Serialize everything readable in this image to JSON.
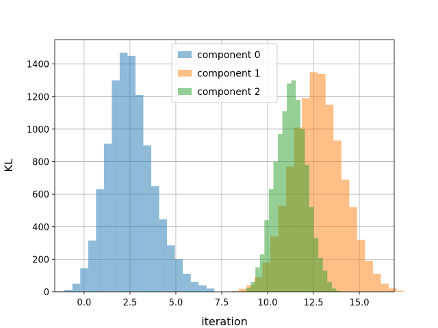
{
  "chart_data": {
    "type": "histogram",
    "xlabel": "iteration",
    "ylabel": "KL",
    "xlim": [
      -1.6,
      16.9
    ],
    "ylim": [
      0,
      1550
    ],
    "xticks": [
      0.0,
      2.5,
      5.0,
      7.5,
      10.0,
      12.5,
      15.0
    ],
    "xtick_labels": [
      "0.0",
      "2.5",
      "5.0",
      "7.5",
      "10.0",
      "12.5",
      "15.0"
    ],
    "yticks": [
      0,
      200,
      400,
      600,
      800,
      1000,
      1200,
      1400
    ],
    "ytick_labels": [
      "0",
      "200",
      "400",
      "600",
      "800",
      "1000",
      "1200",
      "1400"
    ],
    "grid": true,
    "legend_position": "top-center",
    "series": [
      {
        "name": "component 0",
        "color": "#1f77b4",
        "alpha": 0.5,
        "bin_start": -1.5,
        "bin_width": 0.43,
        "counts": [
          3,
          12,
          50,
          145,
          315,
          630,
          910,
          1300,
          1470,
          1450,
          1210,
          900,
          650,
          445,
          285,
          200,
          110,
          60,
          40,
          20
        ]
      },
      {
        "name": "component 1",
        "color": "#ff7f0e",
        "alpha": 0.5,
        "bin_start": 8.0,
        "bin_width": 0.43,
        "counts": [
          5,
          18,
          40,
          90,
          180,
          340,
          530,
          770,
          1010,
          1190,
          1350,
          1340,
          1150,
          930,
          690,
          520,
          320,
          190,
          110,
          50,
          20,
          6
        ]
      },
      {
        "name": "component 2",
        "color": "#2ca02c",
        "alpha": 0.5,
        "bin_start": 8.6,
        "bin_width": 0.245,
        "counts": [
          3,
          25,
          60,
          150,
          230,
          440,
          630,
          800,
          970,
          1110,
          1280,
          1300,
          1180,
          1000,
          780,
          520,
          330,
          210,
          130,
          60,
          20,
          4
        ]
      }
    ]
  }
}
